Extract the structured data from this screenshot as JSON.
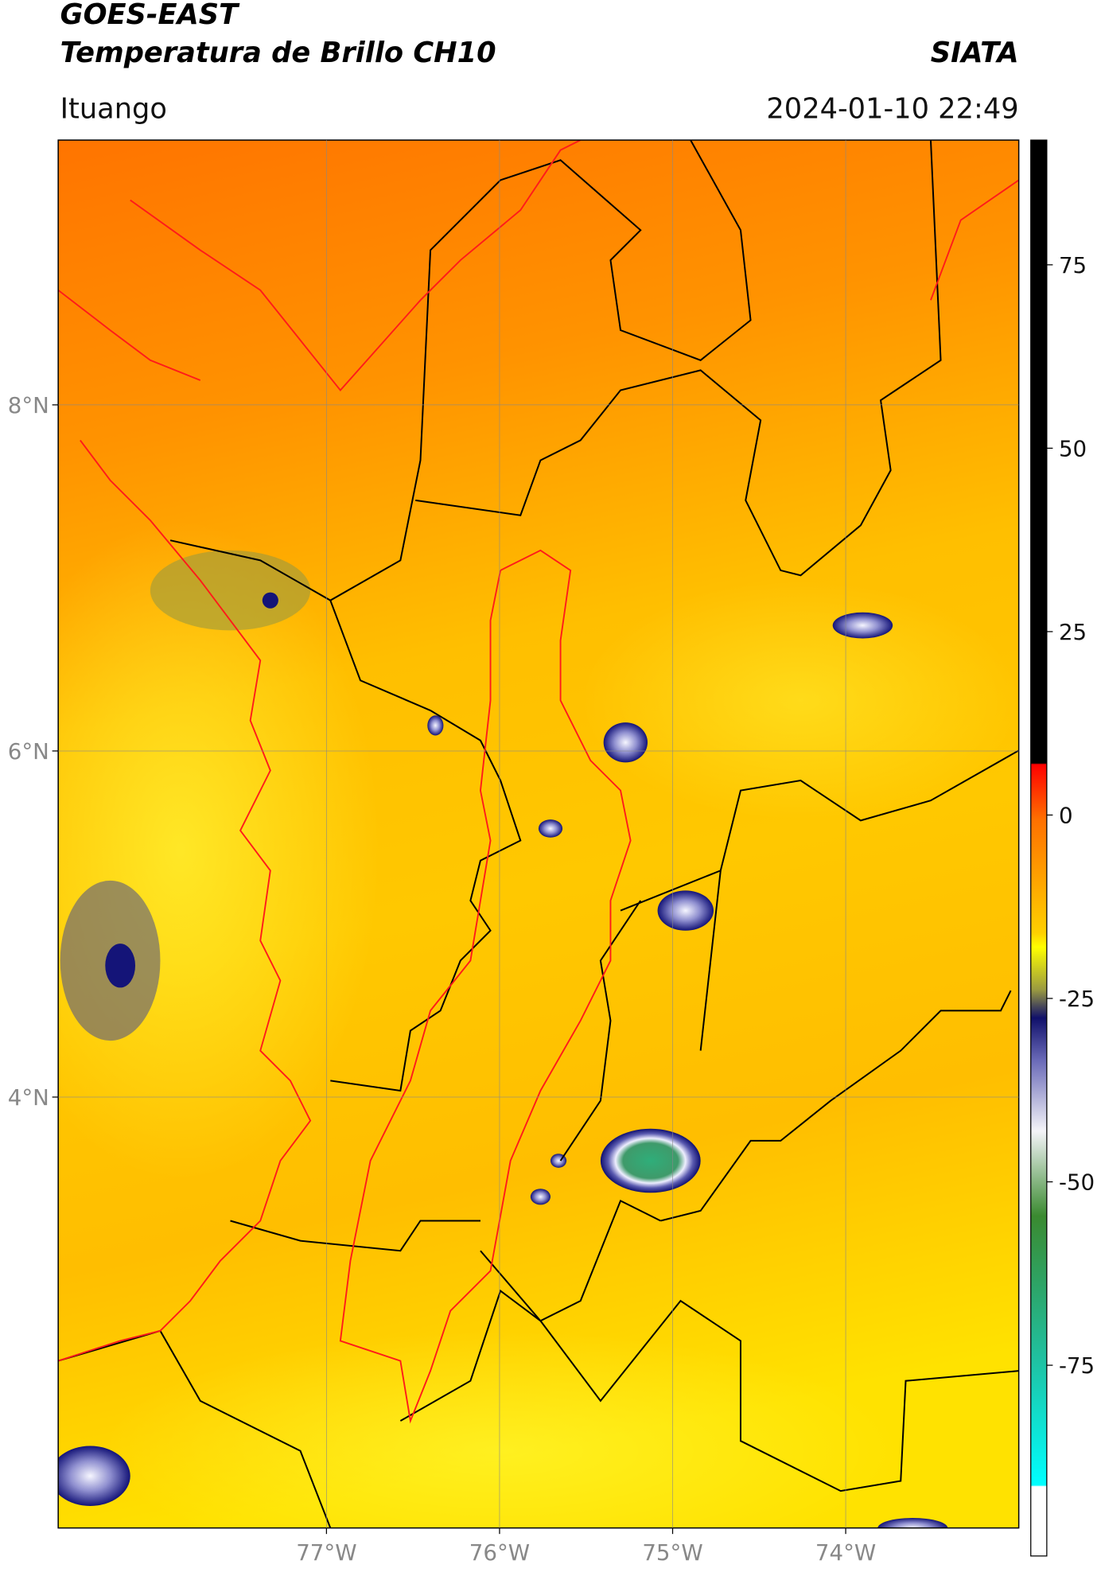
{
  "header": {
    "satellite": "GOES-EAST",
    "product": "Temperatura de Brillo CH10",
    "brand": "SIATA",
    "location": "Ituango",
    "datetime": "2024-01-10 22:49"
  },
  "map": {
    "xlim": [
      -78.55,
      -73.0
    ],
    "ylim": [
      1.51,
      9.53
    ],
    "lat_ticks": [
      {
        "value": 8,
        "label": "8°N"
      },
      {
        "value": 6,
        "label": "6°N"
      },
      {
        "value": 4,
        "label": "4°N"
      }
    ],
    "lon_ticks": [
      {
        "value": -77,
        "label": "77°W"
      },
      {
        "value": -76,
        "label": "76°W"
      },
      {
        "value": -75,
        "label": "75°W"
      },
      {
        "value": -74,
        "label": "74°W"
      }
    ]
  },
  "colorbar": {
    "lim": [
      -101,
      92
    ],
    "ticks": [
      75,
      50,
      25,
      0,
      -25,
      -50,
      -75
    ]
  }
}
